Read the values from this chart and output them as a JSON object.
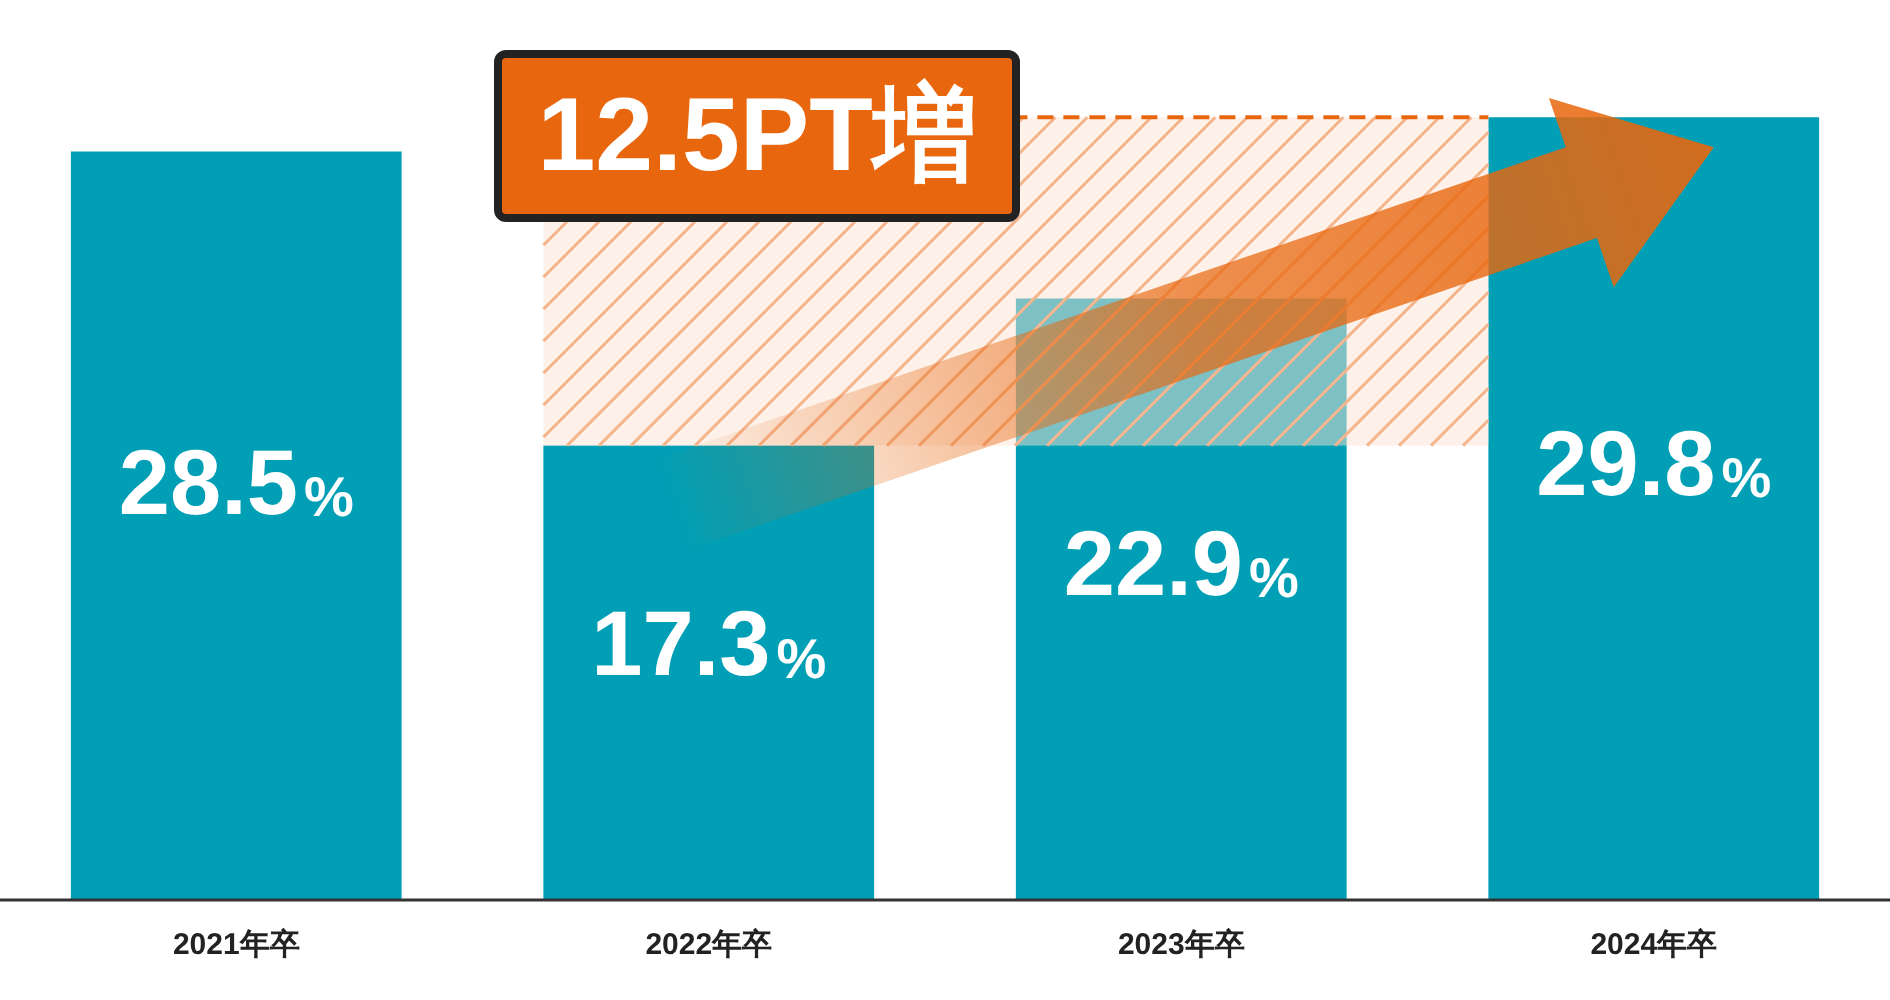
{
  "chart_data": {
    "type": "bar",
    "categories": [
      "2021年卒",
      "2022年卒",
      "2023年卒",
      "2024年卒"
    ],
    "values": [
      28.5,
      17.3,
      22.9,
      29.8
    ],
    "color": "#009fb5",
    "value_labels": [
      "28.5%",
      "17.3%",
      "22.9%",
      "29.8%"
    ],
    "tick_labels": "x",
    "grid": false,
    "legend": false,
    "annotations": [
      "12.5PT増"
    ]
  }
}
